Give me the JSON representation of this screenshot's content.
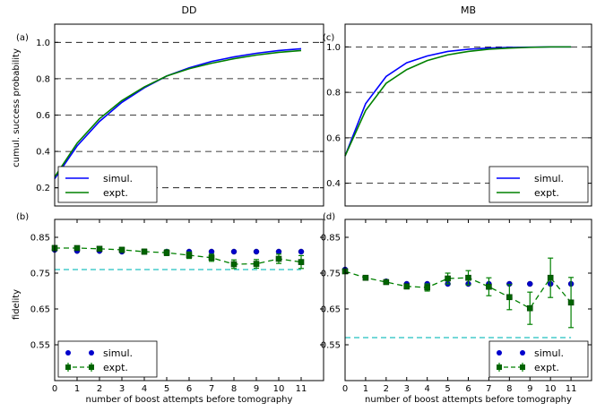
{
  "chart_data": [
    {
      "id": "a",
      "type": "line",
      "panel_label": "(a)",
      "title": "DD",
      "ylabel": "cumul. success probability",
      "xlim": [
        0,
        12
      ],
      "ylim": [
        0.1,
        1.1
      ],
      "yticks": [
        0.2,
        0.4,
        0.6,
        0.8,
        1.0
      ],
      "ytick_labels": [
        "0.2",
        "0.4",
        "0.6",
        "0.8",
        "1.0"
      ],
      "hlines": [
        0.2,
        0.4,
        0.6,
        0.8,
        1.0
      ],
      "legend": "lower-left",
      "series": [
        {
          "name": "simul.",
          "color": "#0000ff",
          "x": [
            0,
            1,
            2,
            3,
            4,
            5,
            6,
            7,
            8,
            9,
            10,
            11
          ],
          "y": [
            0.25,
            0.43,
            0.565,
            0.67,
            0.75,
            0.815,
            0.86,
            0.895,
            0.92,
            0.94,
            0.955,
            0.965
          ]
        },
        {
          "name": "expt.",
          "color": "#008000",
          "x": [
            0,
            1,
            2,
            3,
            4,
            5,
            6,
            7,
            8,
            9,
            10,
            11
          ],
          "y": [
            0.26,
            0.445,
            0.58,
            0.68,
            0.755,
            0.815,
            0.855,
            0.885,
            0.91,
            0.93,
            0.945,
            0.955
          ]
        }
      ]
    },
    {
      "id": "b",
      "type": "scatter",
      "panel_label": "(b)",
      "ylabel": "fidelity",
      "xlabel": "number of boost attempts before tomography",
      "xlim": [
        0,
        12
      ],
      "ylim": [
        0.45,
        0.9
      ],
      "yticks": [
        0.55,
        0.65,
        0.75,
        0.85
      ],
      "ytick_labels": [
        "0.55",
        "0.65",
        "0.75",
        "0.85"
      ],
      "xticks": [
        0,
        1,
        2,
        3,
        4,
        5,
        6,
        7,
        8,
        9,
        10,
        11
      ],
      "xtick_labels": [
        "0",
        "1",
        "2",
        "3",
        "4",
        "5",
        "6",
        "7",
        "8",
        "9",
        "10",
        "11"
      ],
      "reference_line": {
        "y": 0.76,
        "x": [
          0,
          11
        ],
        "color": "#20c0c0"
      },
      "legend": "lower-left",
      "series": [
        {
          "name": "simul.",
          "color": "#0000cc",
          "x": [
            0,
            1,
            2,
            3,
            4,
            5,
            6,
            7,
            8,
            9,
            10,
            11
          ],
          "y": [
            0.815,
            0.812,
            0.812,
            0.81,
            0.81,
            0.81,
            0.81,
            0.81,
            0.81,
            0.81,
            0.81,
            0.81
          ]
        },
        {
          "name": "expt.",
          "color": "#008000",
          "x": [
            0,
            1,
            2,
            3,
            4,
            5,
            6,
            7,
            8,
            9,
            10,
            11
          ],
          "y": [
            0.82,
            0.82,
            0.818,
            0.815,
            0.81,
            0.807,
            0.8,
            0.793,
            0.775,
            0.776,
            0.79,
            0.781
          ],
          "yerr": [
            0.007,
            0.006,
            0.006,
            0.007,
            0.007,
            0.008,
            0.009,
            0.01,
            0.012,
            0.012,
            0.013,
            0.018
          ]
        }
      ]
    },
    {
      "id": "c",
      "type": "line",
      "panel_label": "(c)",
      "title": "MB",
      "xlim": [
        0,
        12
      ],
      "ylim": [
        0.3,
        1.1
      ],
      "yticks": [
        0.4,
        0.6,
        0.8,
        1.0
      ],
      "ytick_labels": [
        "0.4",
        "0.6",
        "0.8",
        "1.0"
      ],
      "hlines": [
        0.4,
        0.6,
        0.8,
        1.0
      ],
      "legend": "lower-right",
      "series": [
        {
          "name": "simul.",
          "color": "#0000ff",
          "x": [
            0,
            1,
            2,
            3,
            4,
            5,
            6,
            7,
            8,
            9,
            10,
            11
          ],
          "y": [
            0.52,
            0.75,
            0.87,
            0.93,
            0.96,
            0.98,
            0.99,
            0.995,
            0.998,
            0.999,
            1.0,
            1.0
          ]
        },
        {
          "name": "expt.",
          "color": "#008000",
          "x": [
            0,
            1,
            2,
            3,
            4,
            5,
            6,
            7,
            8,
            9,
            10,
            11
          ],
          "y": [
            0.52,
            0.72,
            0.84,
            0.9,
            0.94,
            0.965,
            0.98,
            0.99,
            0.995,
            0.998,
            1.0,
            1.0
          ]
        }
      ]
    },
    {
      "id": "d",
      "type": "scatter",
      "panel_label": "(d)",
      "xlabel": "number of boost attempts before tomography",
      "xlim": [
        0,
        12
      ],
      "ylim": [
        0.45,
        0.9
      ],
      "yticks": [
        0.55,
        0.65,
        0.75,
        0.85
      ],
      "ytick_labels": [
        "0.55",
        "0.65",
        "0.75",
        "0.85"
      ],
      "xticks": [
        0,
        1,
        2,
        3,
        4,
        5,
        6,
        7,
        8,
        9,
        10,
        11
      ],
      "xtick_labels": [
        "0",
        "1",
        "2",
        "3",
        "4",
        "5",
        "6",
        "7",
        "8",
        "9",
        "10",
        "11"
      ],
      "reference_line": {
        "y": 0.57,
        "x": [
          0,
          11
        ],
        "color": "#20c0c0"
      },
      "legend": "lower-right",
      "series": [
        {
          "name": "simul.",
          "color": "#0000cc",
          "x": [
            0,
            1,
            2,
            3,
            4,
            5,
            6,
            7,
            8,
            9,
            10,
            11
          ],
          "y": [
            0.76,
            0.737,
            0.727,
            0.72,
            0.72,
            0.72,
            0.72,
            0.72,
            0.72,
            0.72,
            0.72,
            0.72
          ]
        },
        {
          "name": "expt.",
          "color": "#008000",
          "x": [
            0,
            1,
            2,
            3,
            4,
            5,
            6,
            7,
            8,
            9,
            10,
            11
          ],
          "y": [
            0.755,
            0.737,
            0.725,
            0.713,
            0.71,
            0.735,
            0.737,
            0.712,
            0.683,
            0.652,
            0.737,
            0.668
          ],
          "yerr": [
            0.005,
            0.005,
            0.006,
            0.007,
            0.01,
            0.015,
            0.02,
            0.025,
            0.035,
            0.045,
            0.055,
            0.07
          ]
        }
      ]
    }
  ]
}
